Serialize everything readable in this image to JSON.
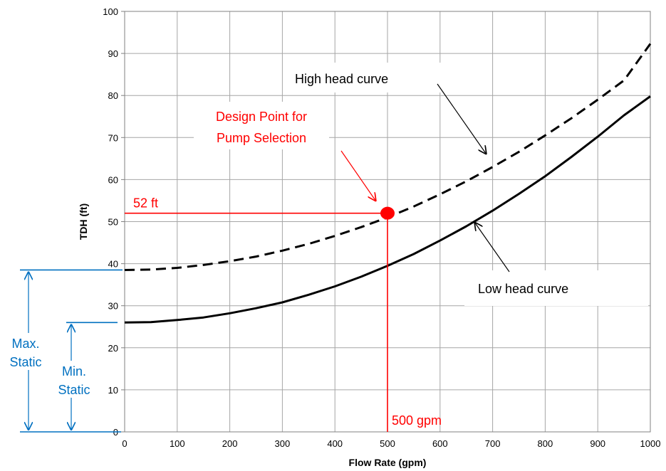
{
  "chart_data": {
    "type": "line",
    "xlabel": "Flow Rate (gpm)",
    "ylabel": "TDH (ft)",
    "xlim": [
      0,
      1000
    ],
    "ylim": [
      0,
      100
    ],
    "xticks": [
      "0",
      "100",
      "200",
      "300",
      "400",
      "500",
      "600",
      "700",
      "800",
      "900",
      "1000"
    ],
    "yticks": [
      "0",
      "10",
      "20",
      "30",
      "40",
      "50",
      "60",
      "70",
      "80",
      "90",
      "100"
    ],
    "grid": true,
    "series": [
      {
        "name": "High head curve",
        "style": "dashed",
        "color": "#000000",
        "x": [
          0,
          50,
          100,
          150,
          200,
          250,
          300,
          350,
          400,
          450,
          500,
          550,
          600,
          650,
          700,
          750,
          800,
          850,
          900,
          950,
          1000
        ],
        "y": [
          38.5,
          38.6,
          39.0,
          39.7,
          40.6,
          41.7,
          43.1,
          44.7,
          46.6,
          48.7,
          51.0,
          53.6,
          56.5,
          59.6,
          63.0,
          66.6,
          70.5,
          74.6,
          79.0,
          83.6,
          92.3
        ]
      },
      {
        "name": "Low head curve",
        "style": "solid",
        "color": "#000000",
        "x": [
          0,
          50,
          100,
          150,
          200,
          250,
          300,
          350,
          400,
          450,
          500,
          550,
          600,
          650,
          700,
          750,
          800,
          850,
          900,
          950,
          1000
        ],
        "y": [
          26.0,
          26.1,
          26.6,
          27.2,
          28.2,
          29.4,
          30.8,
          32.6,
          34.6,
          36.9,
          39.5,
          42.3,
          45.5,
          48.9,
          52.6,
          56.6,
          60.8,
          65.4,
          70.2,
          75.3,
          79.8
        ]
      }
    ],
    "design_point": {
      "x": 500,
      "y": 52,
      "color": "#ff0000",
      "x_label": "500 gpm",
      "y_label": "52 ft"
    },
    "static_levels": {
      "max": 38.5,
      "min": 26.0,
      "color": "#0070c0"
    },
    "annotations": {
      "design_point_title": [
        "Design Point for",
        "Pump Selection"
      ],
      "high_curve": "High head curve",
      "low_curve": "Low head curve",
      "max_static": [
        "Max.",
        "Static"
      ],
      "min_static": [
        "Min.",
        "Static"
      ]
    }
  }
}
